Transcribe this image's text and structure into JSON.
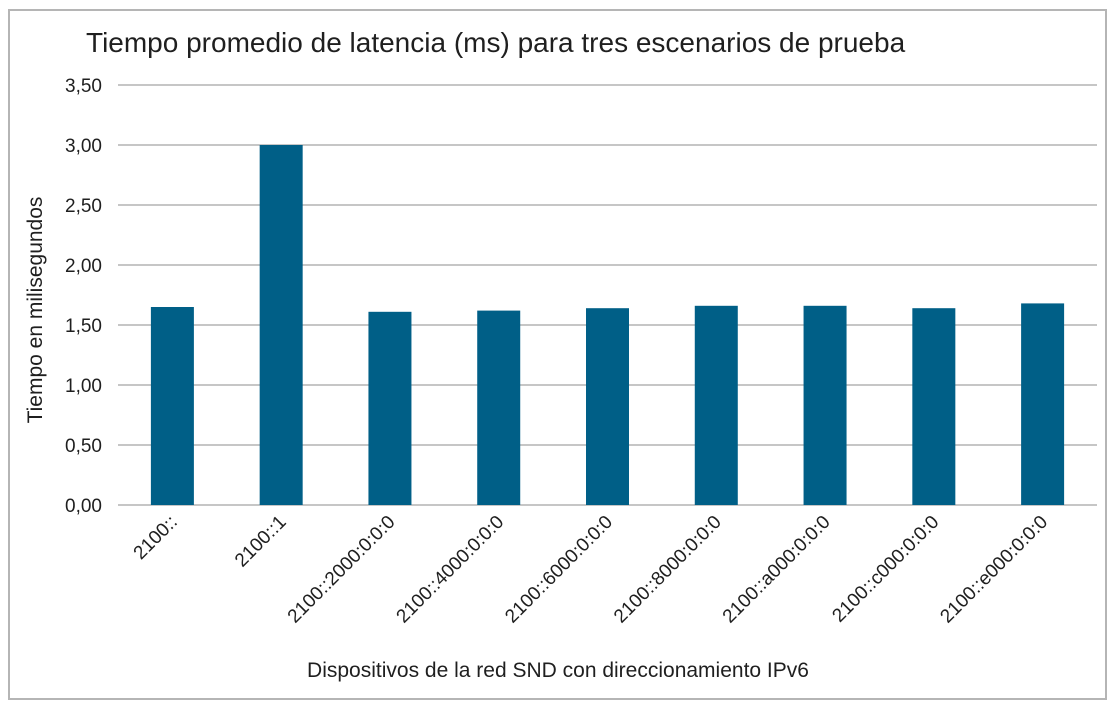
{
  "chart_data": {
    "type": "bar",
    "title": "Tiempo promedio de latencia (ms) para tres escenarios de prueba",
    "xlabel": "Dispositivos de la red SND con direccionamiento IPv6",
    "ylabel": "Tiempo en milisegundos",
    "categories": [
      "2100::",
      "2100::1",
      "2100::2000:0:0:0",
      "2100::4000:0:0:0",
      "2100::6000:0:0:0",
      "2100::8000:0:0:0",
      "2100::a000:0:0:0",
      "2100::c000:0:0:0",
      "2100::e000:0:0:0"
    ],
    "values": [
      1.65,
      3.0,
      1.61,
      1.62,
      1.64,
      1.66,
      1.66,
      1.64,
      1.68
    ],
    "ylim": [
      0,
      3.5
    ],
    "yticks": [
      "0,00",
      "0,50",
      "1,00",
      "1,50",
      "2,00",
      "2,50",
      "3,00",
      "3,50"
    ],
    "grid": true,
    "legend": "none",
    "bar_color": "#005f87"
  }
}
